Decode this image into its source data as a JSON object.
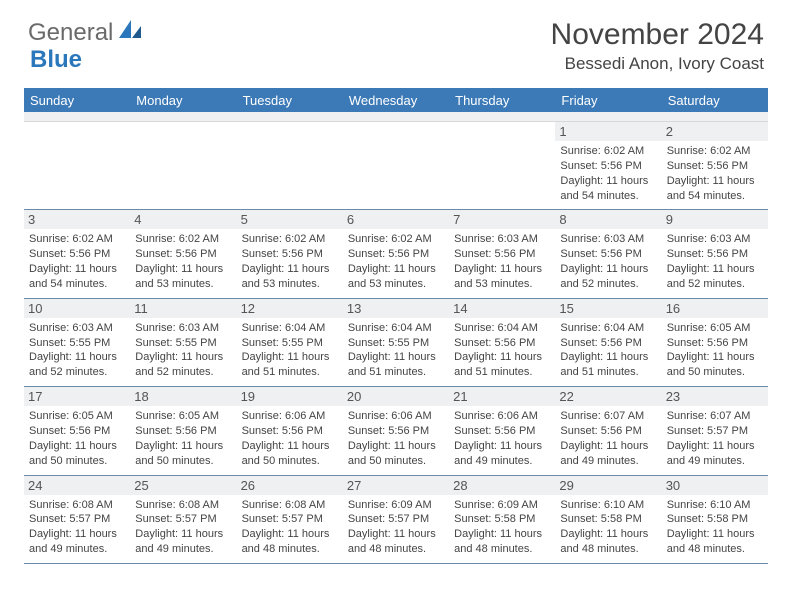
{
  "logo": {
    "text1": "General",
    "text2": "Blue"
  },
  "title": "November 2024",
  "location": "Bessedi Anon, Ivory Coast",
  "header_bg": "#3b79b7",
  "daynum_bg": "#eef0f1",
  "weekdays": [
    "Sunday",
    "Monday",
    "Tuesday",
    "Wednesday",
    "Thursday",
    "Friday",
    "Saturday"
  ],
  "weeks": [
    [
      {
        "n": "",
        "sr": "",
        "ss": "",
        "dl": ""
      },
      {
        "n": "",
        "sr": "",
        "ss": "",
        "dl": ""
      },
      {
        "n": "",
        "sr": "",
        "ss": "",
        "dl": ""
      },
      {
        "n": "",
        "sr": "",
        "ss": "",
        "dl": ""
      },
      {
        "n": "",
        "sr": "",
        "ss": "",
        "dl": ""
      },
      {
        "n": "1",
        "sr": "Sunrise: 6:02 AM",
        "ss": "Sunset: 5:56 PM",
        "dl": "Daylight: 11 hours and 54 minutes."
      },
      {
        "n": "2",
        "sr": "Sunrise: 6:02 AM",
        "ss": "Sunset: 5:56 PM",
        "dl": "Daylight: 11 hours and 54 minutes."
      }
    ],
    [
      {
        "n": "3",
        "sr": "Sunrise: 6:02 AM",
        "ss": "Sunset: 5:56 PM",
        "dl": "Daylight: 11 hours and 54 minutes."
      },
      {
        "n": "4",
        "sr": "Sunrise: 6:02 AM",
        "ss": "Sunset: 5:56 PM",
        "dl": "Daylight: 11 hours and 53 minutes."
      },
      {
        "n": "5",
        "sr": "Sunrise: 6:02 AM",
        "ss": "Sunset: 5:56 PM",
        "dl": "Daylight: 11 hours and 53 minutes."
      },
      {
        "n": "6",
        "sr": "Sunrise: 6:02 AM",
        "ss": "Sunset: 5:56 PM",
        "dl": "Daylight: 11 hours and 53 minutes."
      },
      {
        "n": "7",
        "sr": "Sunrise: 6:03 AM",
        "ss": "Sunset: 5:56 PM",
        "dl": "Daylight: 11 hours and 53 minutes."
      },
      {
        "n": "8",
        "sr": "Sunrise: 6:03 AM",
        "ss": "Sunset: 5:56 PM",
        "dl": "Daylight: 11 hours and 52 minutes."
      },
      {
        "n": "9",
        "sr": "Sunrise: 6:03 AM",
        "ss": "Sunset: 5:56 PM",
        "dl": "Daylight: 11 hours and 52 minutes."
      }
    ],
    [
      {
        "n": "10",
        "sr": "Sunrise: 6:03 AM",
        "ss": "Sunset: 5:55 PM",
        "dl": "Daylight: 11 hours and 52 minutes."
      },
      {
        "n": "11",
        "sr": "Sunrise: 6:03 AM",
        "ss": "Sunset: 5:55 PM",
        "dl": "Daylight: 11 hours and 52 minutes."
      },
      {
        "n": "12",
        "sr": "Sunrise: 6:04 AM",
        "ss": "Sunset: 5:55 PM",
        "dl": "Daylight: 11 hours and 51 minutes."
      },
      {
        "n": "13",
        "sr": "Sunrise: 6:04 AM",
        "ss": "Sunset: 5:55 PM",
        "dl": "Daylight: 11 hours and 51 minutes."
      },
      {
        "n": "14",
        "sr": "Sunrise: 6:04 AM",
        "ss": "Sunset: 5:56 PM",
        "dl": "Daylight: 11 hours and 51 minutes."
      },
      {
        "n": "15",
        "sr": "Sunrise: 6:04 AM",
        "ss": "Sunset: 5:56 PM",
        "dl": "Daylight: 11 hours and 51 minutes."
      },
      {
        "n": "16",
        "sr": "Sunrise: 6:05 AM",
        "ss": "Sunset: 5:56 PM",
        "dl": "Daylight: 11 hours and 50 minutes."
      }
    ],
    [
      {
        "n": "17",
        "sr": "Sunrise: 6:05 AM",
        "ss": "Sunset: 5:56 PM",
        "dl": "Daylight: 11 hours and 50 minutes."
      },
      {
        "n": "18",
        "sr": "Sunrise: 6:05 AM",
        "ss": "Sunset: 5:56 PM",
        "dl": "Daylight: 11 hours and 50 minutes."
      },
      {
        "n": "19",
        "sr": "Sunrise: 6:06 AM",
        "ss": "Sunset: 5:56 PM",
        "dl": "Daylight: 11 hours and 50 minutes."
      },
      {
        "n": "20",
        "sr": "Sunrise: 6:06 AM",
        "ss": "Sunset: 5:56 PM",
        "dl": "Daylight: 11 hours and 50 minutes."
      },
      {
        "n": "21",
        "sr": "Sunrise: 6:06 AM",
        "ss": "Sunset: 5:56 PM",
        "dl": "Daylight: 11 hours and 49 minutes."
      },
      {
        "n": "22",
        "sr": "Sunrise: 6:07 AM",
        "ss": "Sunset: 5:56 PM",
        "dl": "Daylight: 11 hours and 49 minutes."
      },
      {
        "n": "23",
        "sr": "Sunrise: 6:07 AM",
        "ss": "Sunset: 5:57 PM",
        "dl": "Daylight: 11 hours and 49 minutes."
      }
    ],
    [
      {
        "n": "24",
        "sr": "Sunrise: 6:08 AM",
        "ss": "Sunset: 5:57 PM",
        "dl": "Daylight: 11 hours and 49 minutes."
      },
      {
        "n": "25",
        "sr": "Sunrise: 6:08 AM",
        "ss": "Sunset: 5:57 PM",
        "dl": "Daylight: 11 hours and 49 minutes."
      },
      {
        "n": "26",
        "sr": "Sunrise: 6:08 AM",
        "ss": "Sunset: 5:57 PM",
        "dl": "Daylight: 11 hours and 48 minutes."
      },
      {
        "n": "27",
        "sr": "Sunrise: 6:09 AM",
        "ss": "Sunset: 5:57 PM",
        "dl": "Daylight: 11 hours and 48 minutes."
      },
      {
        "n": "28",
        "sr": "Sunrise: 6:09 AM",
        "ss": "Sunset: 5:58 PM",
        "dl": "Daylight: 11 hours and 48 minutes."
      },
      {
        "n": "29",
        "sr": "Sunrise: 6:10 AM",
        "ss": "Sunset: 5:58 PM",
        "dl": "Daylight: 11 hours and 48 minutes."
      },
      {
        "n": "30",
        "sr": "Sunrise: 6:10 AM",
        "ss": "Sunset: 5:58 PM",
        "dl": "Daylight: 11 hours and 48 minutes."
      }
    ]
  ]
}
